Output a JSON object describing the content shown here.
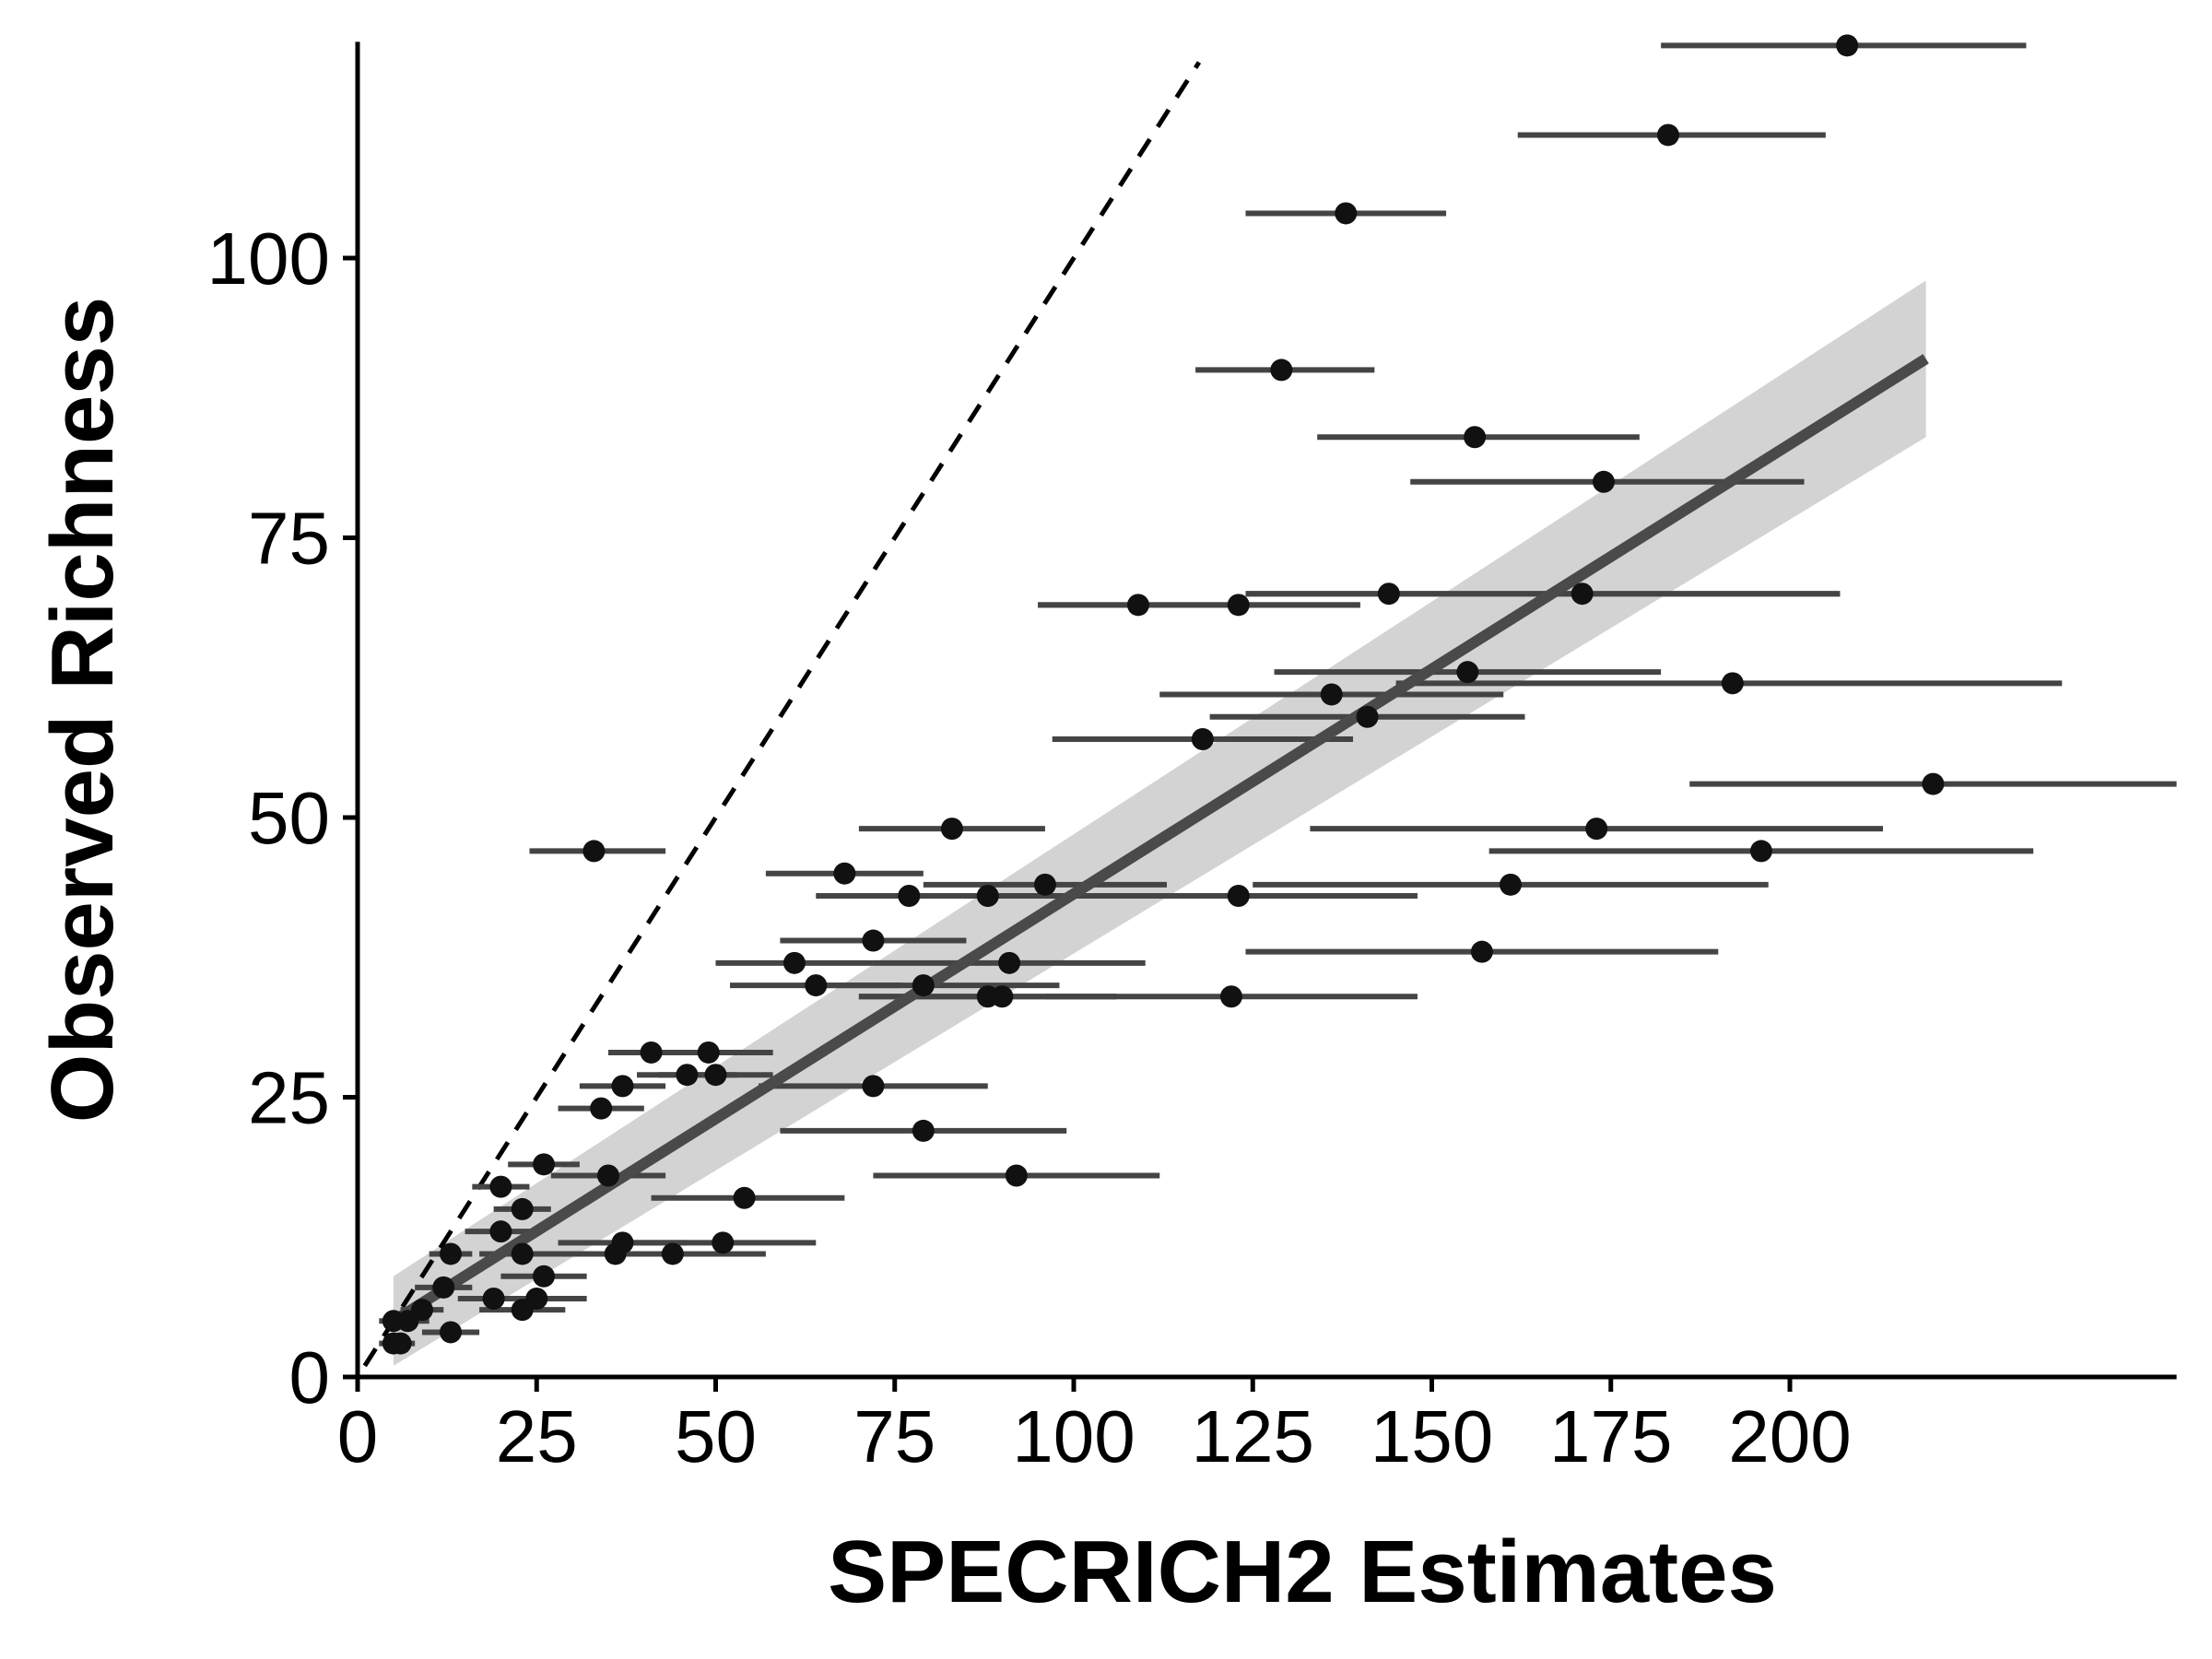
{
  "chart_data": {
    "type": "scatter",
    "title": "",
    "xlabel": "SPECRICH2 Estimates",
    "ylabel": "Observed Richness",
    "xlim": [
      0,
      254
    ],
    "ylim": [
      0,
      119
    ],
    "xticks": [
      0,
      25,
      50,
      75,
      100,
      125,
      150,
      175,
      200
    ],
    "yticks": [
      0,
      25,
      50,
      75,
      100
    ],
    "grid": false,
    "legend": "none",
    "colors": {
      "points": "#111111",
      "errorbars": "#444444",
      "fit_line": "#4a4a4a",
      "ribbon": "#d3d3d3",
      "reference_line": "#000000",
      "axes": "#000000"
    },
    "reference_line": {
      "style": "dashed",
      "slope": 1,
      "intercept": 0
    },
    "fit_line": {
      "x": [
        5,
        219
      ],
      "y": [
        5,
        91
      ]
    },
    "confidence_band": {
      "x": [
        5,
        219
      ],
      "lo": [
        1,
        84
      ],
      "hi": [
        9,
        98
      ]
    },
    "points": [
      {
        "x": 208,
        "y": 119,
        "xmin": 182,
        "xmax": 233
      },
      {
        "x": 183,
        "y": 111,
        "xmin": 162,
        "xmax": 205
      },
      {
        "x": 138,
        "y": 104,
        "xmin": 124,
        "xmax": 152
      },
      {
        "x": 129,
        "y": 90,
        "xmin": 117,
        "xmax": 142
      },
      {
        "x": 156,
        "y": 84,
        "xmin": 134,
        "xmax": 179
      },
      {
        "x": 174,
        "y": 80,
        "xmin": 147,
        "xmax": 202
      },
      {
        "x": 144,
        "y": 70,
        "xmin": 124,
        "xmax": 207
      },
      {
        "x": 171,
        "y": 70,
        "xmin": 124,
        "xmax": 207
      },
      {
        "x": 109,
        "y": 69,
        "xmin": 95,
        "xmax": 140
      },
      {
        "x": 123,
        "y": 69,
        "xmin": 95,
        "xmax": 140
      },
      {
        "x": 155,
        "y": 63,
        "xmin": 128,
        "xmax": 182
      },
      {
        "x": 192,
        "y": 62,
        "xmin": 145,
        "xmax": 238
      },
      {
        "x": 136,
        "y": 61,
        "xmin": 112,
        "xmax": 160
      },
      {
        "x": 141,
        "y": 59,
        "xmin": 119,
        "xmax": 163
      },
      {
        "x": 118,
        "y": 57,
        "xmin": 97,
        "xmax": 139
      },
      {
        "x": 220,
        "y": 53,
        "xmin": 186,
        "xmax": 254
      },
      {
        "x": 173,
        "y": 49,
        "xmin": 133,
        "xmax": 213
      },
      {
        "x": 83,
        "y": 49,
        "xmin": 70,
        "xmax": 96
      },
      {
        "x": 196,
        "y": 47,
        "xmin": 158,
        "xmax": 234
      },
      {
        "x": 33,
        "y": 47,
        "xmin": 24,
        "xmax": 43
      },
      {
        "x": 68,
        "y": 45,
        "xmin": 57,
        "xmax": 79
      },
      {
        "x": 161,
        "y": 44,
        "xmin": 125,
        "xmax": 197
      },
      {
        "x": 96,
        "y": 44,
        "xmin": 79,
        "xmax": 113
      },
      {
        "x": 77,
        "y": 43,
        "xmin": 64,
        "xmax": 90
      },
      {
        "x": 88,
        "y": 43,
        "xmin": 70,
        "xmax": 107
      },
      {
        "x": 123,
        "y": 43,
        "xmin": 99,
        "xmax": 148
      },
      {
        "x": 72,
        "y": 39,
        "xmin": 59,
        "xmax": 85
      },
      {
        "x": 157,
        "y": 38,
        "xmin": 124,
        "xmax": 190
      },
      {
        "x": 61,
        "y": 37,
        "xmin": 50,
        "xmax": 72
      },
      {
        "x": 91,
        "y": 37,
        "xmin": 72,
        "xmax": 110
      },
      {
        "x": 64,
        "y": 35,
        "xmin": 52,
        "xmax": 76
      },
      {
        "x": 79,
        "y": 35,
        "xmin": 62,
        "xmax": 98
      },
      {
        "x": 88,
        "y": 34,
        "xmin": 70,
        "xmax": 106
      },
      {
        "x": 90,
        "y": 34,
        "xmin": 70,
        "xmax": 106
      },
      {
        "x": 122,
        "y": 34,
        "xmin": 96,
        "xmax": 148
      },
      {
        "x": 41,
        "y": 29,
        "xmin": 35,
        "xmax": 47
      },
      {
        "x": 49,
        "y": 29,
        "xmin": 40,
        "xmax": 58
      },
      {
        "x": 46,
        "y": 27,
        "xmin": 39,
        "xmax": 53
      },
      {
        "x": 50,
        "y": 27,
        "xmin": 42,
        "xmax": 58
      },
      {
        "x": 37,
        "y": 26,
        "xmin": 31,
        "xmax": 43
      },
      {
        "x": 72,
        "y": 26,
        "xmin": 56,
        "xmax": 88
      },
      {
        "x": 34,
        "y": 24,
        "xmin": 28,
        "xmax": 40
      },
      {
        "x": 79,
        "y": 22,
        "xmin": 59,
        "xmax": 99
      },
      {
        "x": 26,
        "y": 19,
        "xmin": 21,
        "xmax": 31
      },
      {
        "x": 35,
        "y": 18,
        "xmin": 27,
        "xmax": 43
      },
      {
        "x": 92,
        "y": 18,
        "xmin": 72,
        "xmax": 112
      },
      {
        "x": 20,
        "y": 17,
        "xmin": 16,
        "xmax": 24
      },
      {
        "x": 54,
        "y": 16,
        "xmin": 41,
        "xmax": 68
      },
      {
        "x": 23,
        "y": 15,
        "xmin": 19,
        "xmax": 27
      },
      {
        "x": 20,
        "y": 13,
        "xmin": 15,
        "xmax": 25
      },
      {
        "x": 51,
        "y": 12,
        "xmin": 38,
        "xmax": 64
      },
      {
        "x": 37,
        "y": 12,
        "xmin": 28,
        "xmax": 46
      },
      {
        "x": 36,
        "y": 11,
        "xmin": 26,
        "xmax": 46
      },
      {
        "x": 44,
        "y": 11,
        "xmin": 30,
        "xmax": 57
      },
      {
        "x": 23,
        "y": 11,
        "xmin": 17,
        "xmax": 29
      },
      {
        "x": 13,
        "y": 11,
        "xmin": 10,
        "xmax": 16
      },
      {
        "x": 26,
        "y": 9,
        "xmin": 20,
        "xmax": 32
      },
      {
        "x": 12,
        "y": 8,
        "xmin": 8,
        "xmax": 16
      },
      {
        "x": 25,
        "y": 7,
        "xmin": 18,
        "xmax": 32
      },
      {
        "x": 19,
        "y": 7,
        "xmin": 14,
        "xmax": 24
      },
      {
        "x": 23,
        "y": 6,
        "xmin": 17,
        "xmax": 29
      },
      {
        "x": 9,
        "y": 6,
        "xmin": 6,
        "xmax": 12
      },
      {
        "x": 7,
        "y": 5,
        "xmin": 5,
        "xmax": 10
      },
      {
        "x": 5,
        "y": 5,
        "xmin": 3,
        "xmax": 8
      },
      {
        "x": 13,
        "y": 4,
        "xmin": 9,
        "xmax": 17
      },
      {
        "x": 5,
        "y": 3,
        "xmin": 3,
        "xmax": 7
      },
      {
        "x": 6,
        "y": 3,
        "xmin": 4,
        "xmax": 8
      }
    ]
  }
}
